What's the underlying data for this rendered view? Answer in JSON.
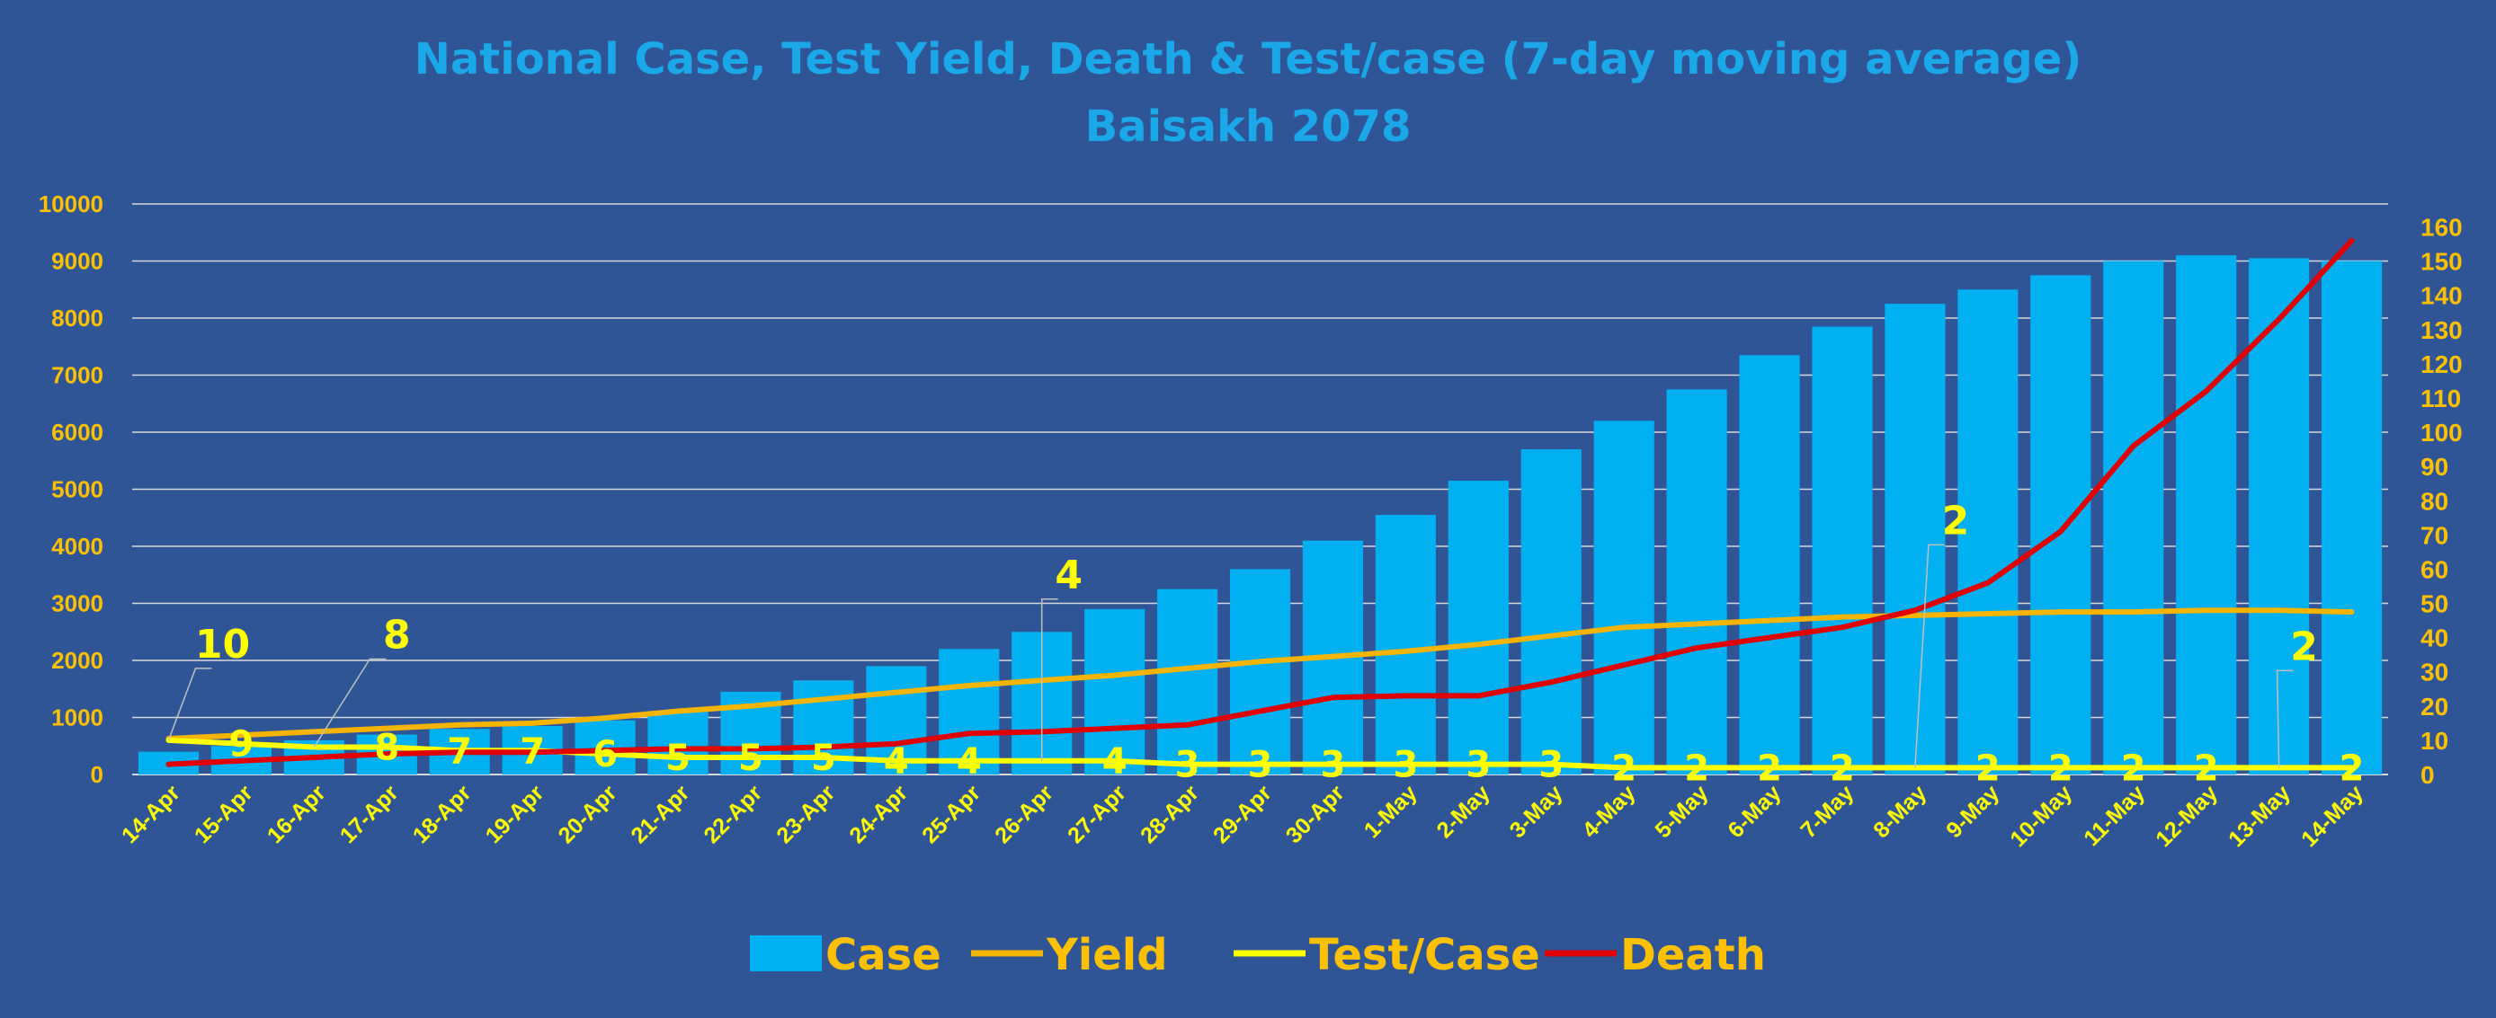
{
  "chart_data": {
    "type": "bar",
    "title": "National Case, Test Yield, Death & Test/case (7-day moving average)",
    "subtitle": "Baisakh 2078",
    "categories": [
      "14-Apr",
      "15-Apr",
      "16-Apr",
      "17-Apr",
      "18-Apr",
      "19-Apr",
      "20-Apr",
      "21-Apr",
      "22-Apr",
      "23-Apr",
      "24-Apr",
      "25-Apr",
      "26-Apr",
      "27-Apr",
      "28-Apr",
      "29-Apr",
      "30-Apr",
      "1-May",
      "2-May",
      "3-May",
      "4-May",
      "5-May",
      "6-May",
      "7-May",
      "8-May",
      "9-May",
      "10-May",
      "11-May",
      "12-May",
      "13-May",
      "14-May"
    ],
    "y_left": {
      "min": 0,
      "max": 10000,
      "step": 1000,
      "ticks": [
        "0",
        "1000",
        "2000",
        "3000",
        "4000",
        "5000",
        "6000",
        "7000",
        "8000",
        "9000",
        "10000"
      ]
    },
    "y_right": {
      "min": 0,
      "max": 166.7,
      "step": 10,
      "ticks": [
        "0",
        "10",
        "20",
        "30",
        "40",
        "50",
        "60",
        "70",
        "80",
        "90",
        "100",
        "110",
        "120",
        "130",
        "140",
        "150",
        "160"
      ]
    },
    "grid": true,
    "legend_position": "bottom",
    "series": [
      {
        "name": "Case",
        "kind": "bar",
        "axis": "left",
        "color": "#00B0F0",
        "values": [
          400,
          500,
          600,
          700,
          800,
          850,
          950,
          1100,
          1450,
          1650,
          1900,
          2200,
          2500,
          2900,
          3250,
          3600,
          4100,
          4550,
          5150,
          5700,
          6200,
          6750,
          7350,
          7850,
          8250,
          8500,
          8750,
          9000,
          9100,
          9050,
          9000
        ]
      },
      {
        "name": "Yield",
        "kind": "line",
        "axis": "right",
        "color": "#F4B400",
        "values": [
          10.5,
          11.5,
          12.5,
          13.5,
          14.5,
          15,
          16.5,
          18.5,
          20,
          22,
          24,
          26,
          27.5,
          29,
          31,
          33,
          34.5,
          36,
          38,
          40.5,
          43,
          44,
          45,
          46,
          46.5,
          47,
          47.5,
          47.5,
          48,
          48,
          47.5
        ]
      },
      {
        "name": "Test/Case",
        "kind": "line",
        "axis": "left",
        "color": "#FFFF00",
        "values": [
          10,
          9,
          8,
          8,
          7,
          7,
          6,
          5,
          5,
          5,
          4,
          4,
          4,
          4,
          3,
          3,
          3,
          3,
          3,
          3,
          2,
          2,
          2,
          2,
          2,
          2,
          2,
          2,
          2,
          2,
          2
        ],
        "plot_scale": 60,
        "labels": [
          "10",
          "9",
          "8",
          "8",
          "7",
          "7",
          "6",
          "5",
          "5",
          "5",
          "4",
          "4",
          "4",
          "4",
          "3",
          "3",
          "3",
          "3",
          "3",
          "3",
          "2",
          "2",
          "2",
          "2",
          "2",
          "2",
          "2",
          "2",
          "2",
          "2",
          "2"
        ]
      },
      {
        "name": "Death",
        "kind": "line",
        "axis": "right",
        "color": "#E00000",
        "values": [
          3,
          4,
          5,
          6,
          6.5,
          6.5,
          7,
          7.5,
          7.5,
          8,
          9,
          12,
          12.5,
          13.5,
          14.5,
          18.5,
          22.5,
          23,
          23,
          27,
          32,
          37,
          40,
          43,
          48,
          56,
          71,
          96,
          112,
          133,
          156
        ]
      }
    ],
    "label_colors": {
      "tick": "#FFC000",
      "category": "#FFFF00",
      "data_label": "#FFFF00",
      "title": "#1AA8E8"
    },
    "callouts": [
      {
        "index": 0,
        "text": "10"
      },
      {
        "index": 2,
        "text": "8"
      },
      {
        "index": 12,
        "text": "4"
      },
      {
        "index": 24,
        "text": "2"
      },
      {
        "index": 29,
        "text": "2"
      }
    ]
  }
}
